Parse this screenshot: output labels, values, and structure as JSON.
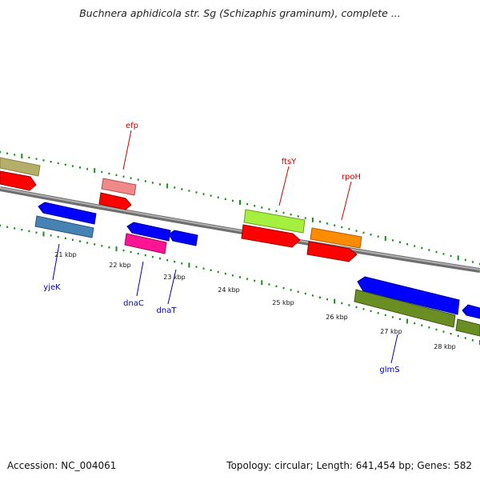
{
  "title": "Buchnera aphidicola str. Sg (Schizaphis graminum), complete ...",
  "footer": {
    "accession": "Accession: NC_004061",
    "summary": "Topology: circular; Length: 641,454 bp; Genes: 582"
  },
  "colors": {
    "backbone": "#8c8c8c",
    "tick": "#1e8a1e",
    "red_label": "#cc0000",
    "blue_label": "#0000cc"
  },
  "kbp_labels": [
    "21 kbp",
    "22 kbp",
    "23 kbp",
    "24 kbp",
    "25 kbp",
    "26 kbp",
    "27 kbp",
    "28 kbp"
  ],
  "genes_top": [
    {
      "name": "efp",
      "color": "#cc0000"
    },
    {
      "name": "ftsY",
      "color": "#cc0000"
    },
    {
      "name": "rpoH",
      "color": "#cc0000"
    }
  ],
  "genes_bottom": [
    {
      "name": "yjeK",
      "color": "#0000cc"
    },
    {
      "name": "dnaC",
      "color": "#0000cc"
    },
    {
      "name": "dnaT",
      "color": "#0000cc"
    },
    {
      "name": "glmS",
      "color": "#0000cc"
    }
  ]
}
